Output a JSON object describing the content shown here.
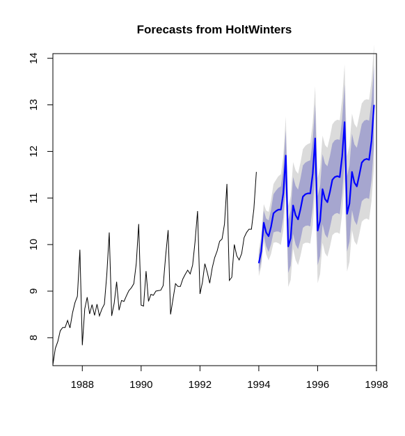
{
  "chart_data": {
    "type": "line",
    "title": "Forecasts from HoltWinters",
    "xlabel": "",
    "ylabel": "",
    "xlim": [
      1987,
      1998
    ],
    "ylim": [
      7.4,
      14.1
    ],
    "grid": false,
    "x_ticks": [
      1988,
      1990,
      1992,
      1994,
      1996,
      1998
    ],
    "y_ticks": [
      8,
      9,
      10,
      11,
      12,
      13,
      14
    ],
    "series": [
      {
        "role": "observed",
        "color": "#000000",
        "x": [
          1987.0,
          1987.083,
          1987.167,
          1987.25,
          1987.333,
          1987.417,
          1987.5,
          1987.583,
          1987.667,
          1987.75,
          1987.833,
          1987.917,
          1988.0,
          1988.083,
          1988.167,
          1988.25,
          1988.333,
          1988.417,
          1988.5,
          1988.583,
          1988.667,
          1988.75,
          1988.833,
          1988.917,
          1989.0,
          1989.083,
          1989.167,
          1989.25,
          1989.333,
          1989.417,
          1989.5,
          1989.583,
          1989.667,
          1989.75,
          1989.833,
          1989.917,
          1990.0,
          1990.083,
          1990.167,
          1990.25,
          1990.333,
          1990.417,
          1990.5,
          1990.583,
          1990.667,
          1990.75,
          1990.833,
          1990.917,
          1991.0,
          1991.083,
          1991.167,
          1991.25,
          1991.333,
          1991.417,
          1991.5,
          1991.583,
          1991.667,
          1991.75,
          1991.833,
          1991.917,
          1992.0,
          1992.083,
          1992.167,
          1992.25,
          1992.333,
          1992.417,
          1992.5,
          1992.583,
          1992.667,
          1992.75,
          1992.833,
          1992.917,
          1993.0,
          1993.083,
          1993.167,
          1993.25,
          1993.333,
          1993.417,
          1993.5,
          1993.583,
          1993.667,
          1993.75,
          1993.833,
          1993.917
        ],
        "y": [
          7.42,
          7.77,
          7.92,
          8.15,
          8.22,
          8.22,
          8.37,
          8.21,
          8.53,
          8.75,
          8.89,
          9.89,
          7.84,
          8.62,
          8.87,
          8.51,
          8.71,
          8.48,
          8.72,
          8.47,
          8.62,
          8.72,
          9.36,
          10.26,
          8.47,
          8.74,
          9.2,
          8.59,
          8.8,
          8.78,
          8.9,
          9.01,
          9.07,
          9.16,
          9.59,
          10.44,
          8.7,
          8.68,
          9.43,
          8.78,
          8.93,
          8.91,
          9.0,
          9.01,
          9.02,
          9.12,
          9.75,
          10.31,
          8.5,
          8.83,
          9.16,
          9.1,
          9.1,
          9.26,
          9.36,
          9.45,
          9.37,
          9.56,
          10.06,
          10.72,
          8.94,
          9.19,
          9.59,
          9.4,
          9.17,
          9.5,
          9.72,
          9.86,
          10.07,
          10.12,
          10.44,
          11.3,
          9.23,
          9.3,
          10.0,
          9.76,
          9.67,
          9.81,
          10.15,
          10.26,
          10.33,
          10.33,
          10.76,
          11.56
        ]
      },
      {
        "role": "forecast",
        "color": "#0000ff",
        "x": [
          1994.0,
          1994.083,
          1994.167,
          1994.25,
          1994.333,
          1994.417,
          1994.5,
          1994.583,
          1994.667,
          1994.75,
          1994.833,
          1994.917,
          1995.0,
          1995.083,
          1995.167,
          1995.25,
          1995.333,
          1995.417,
          1995.5,
          1995.583,
          1995.667,
          1995.75,
          1995.833,
          1995.917,
          1996.0,
          1996.083,
          1996.167,
          1996.25,
          1996.333,
          1996.417,
          1996.5,
          1996.583,
          1996.667,
          1996.75,
          1996.833,
          1996.917,
          1997.0,
          1997.083,
          1997.167,
          1997.25,
          1997.333,
          1997.417,
          1997.5,
          1997.583,
          1997.667,
          1997.75,
          1997.833,
          1997.917
        ],
        "y": [
          9.6,
          9.85,
          10.47,
          10.26,
          10.18,
          10.38,
          10.67,
          10.72,
          10.75,
          10.75,
          11.1,
          11.91,
          9.96,
          10.14,
          10.84,
          10.63,
          10.54,
          10.76,
          11.03,
          11.08,
          11.1,
          11.1,
          11.52,
          12.28,
          10.3,
          10.51,
          11.19,
          10.98,
          10.91,
          11.13,
          11.39,
          11.45,
          11.47,
          11.45,
          11.9,
          12.63,
          10.66,
          10.88,
          11.56,
          11.33,
          11.25,
          11.5,
          11.76,
          11.82,
          11.84,
          11.82,
          12.23,
          13.0
        ]
      }
    ],
    "intervals": [
      {
        "level": "95%",
        "color": "#dbdbdb",
        "lower_offset": [
          0.28,
          0.33,
          0.4,
          0.47,
          0.52,
          0.58,
          0.63,
          0.67,
          0.72,
          0.76,
          0.8,
          0.84,
          0.87,
          0.9,
          0.93,
          0.96,
          0.98,
          1.0,
          1.02,
          1.04,
          1.06,
          1.08,
          1.1,
          1.12,
          1.13,
          1.14,
          1.15,
          1.16,
          1.17,
          1.18,
          1.19,
          1.2,
          1.21,
          1.22,
          1.23,
          1.24,
          1.24,
          1.25,
          1.25,
          1.26,
          1.26,
          1.27,
          1.27,
          1.28,
          1.28,
          1.29,
          1.29,
          1.3
        ]
      },
      {
        "level": "80%",
        "color": "#a6a6cf",
        "lower_offset": [
          0.18,
          0.22,
          0.26,
          0.3,
          0.34,
          0.37,
          0.41,
          0.44,
          0.47,
          0.5,
          0.52,
          0.55,
          0.57,
          0.59,
          0.61,
          0.63,
          0.64,
          0.66,
          0.67,
          0.68,
          0.69,
          0.71,
          0.72,
          0.73,
          0.74,
          0.75,
          0.75,
          0.76,
          0.77,
          0.77,
          0.78,
          0.79,
          0.79,
          0.8,
          0.8,
          0.81,
          0.81,
          0.82,
          0.82,
          0.82,
          0.83,
          0.83,
          0.83,
          0.84,
          0.84,
          0.84,
          0.85,
          0.85
        ]
      }
    ]
  }
}
